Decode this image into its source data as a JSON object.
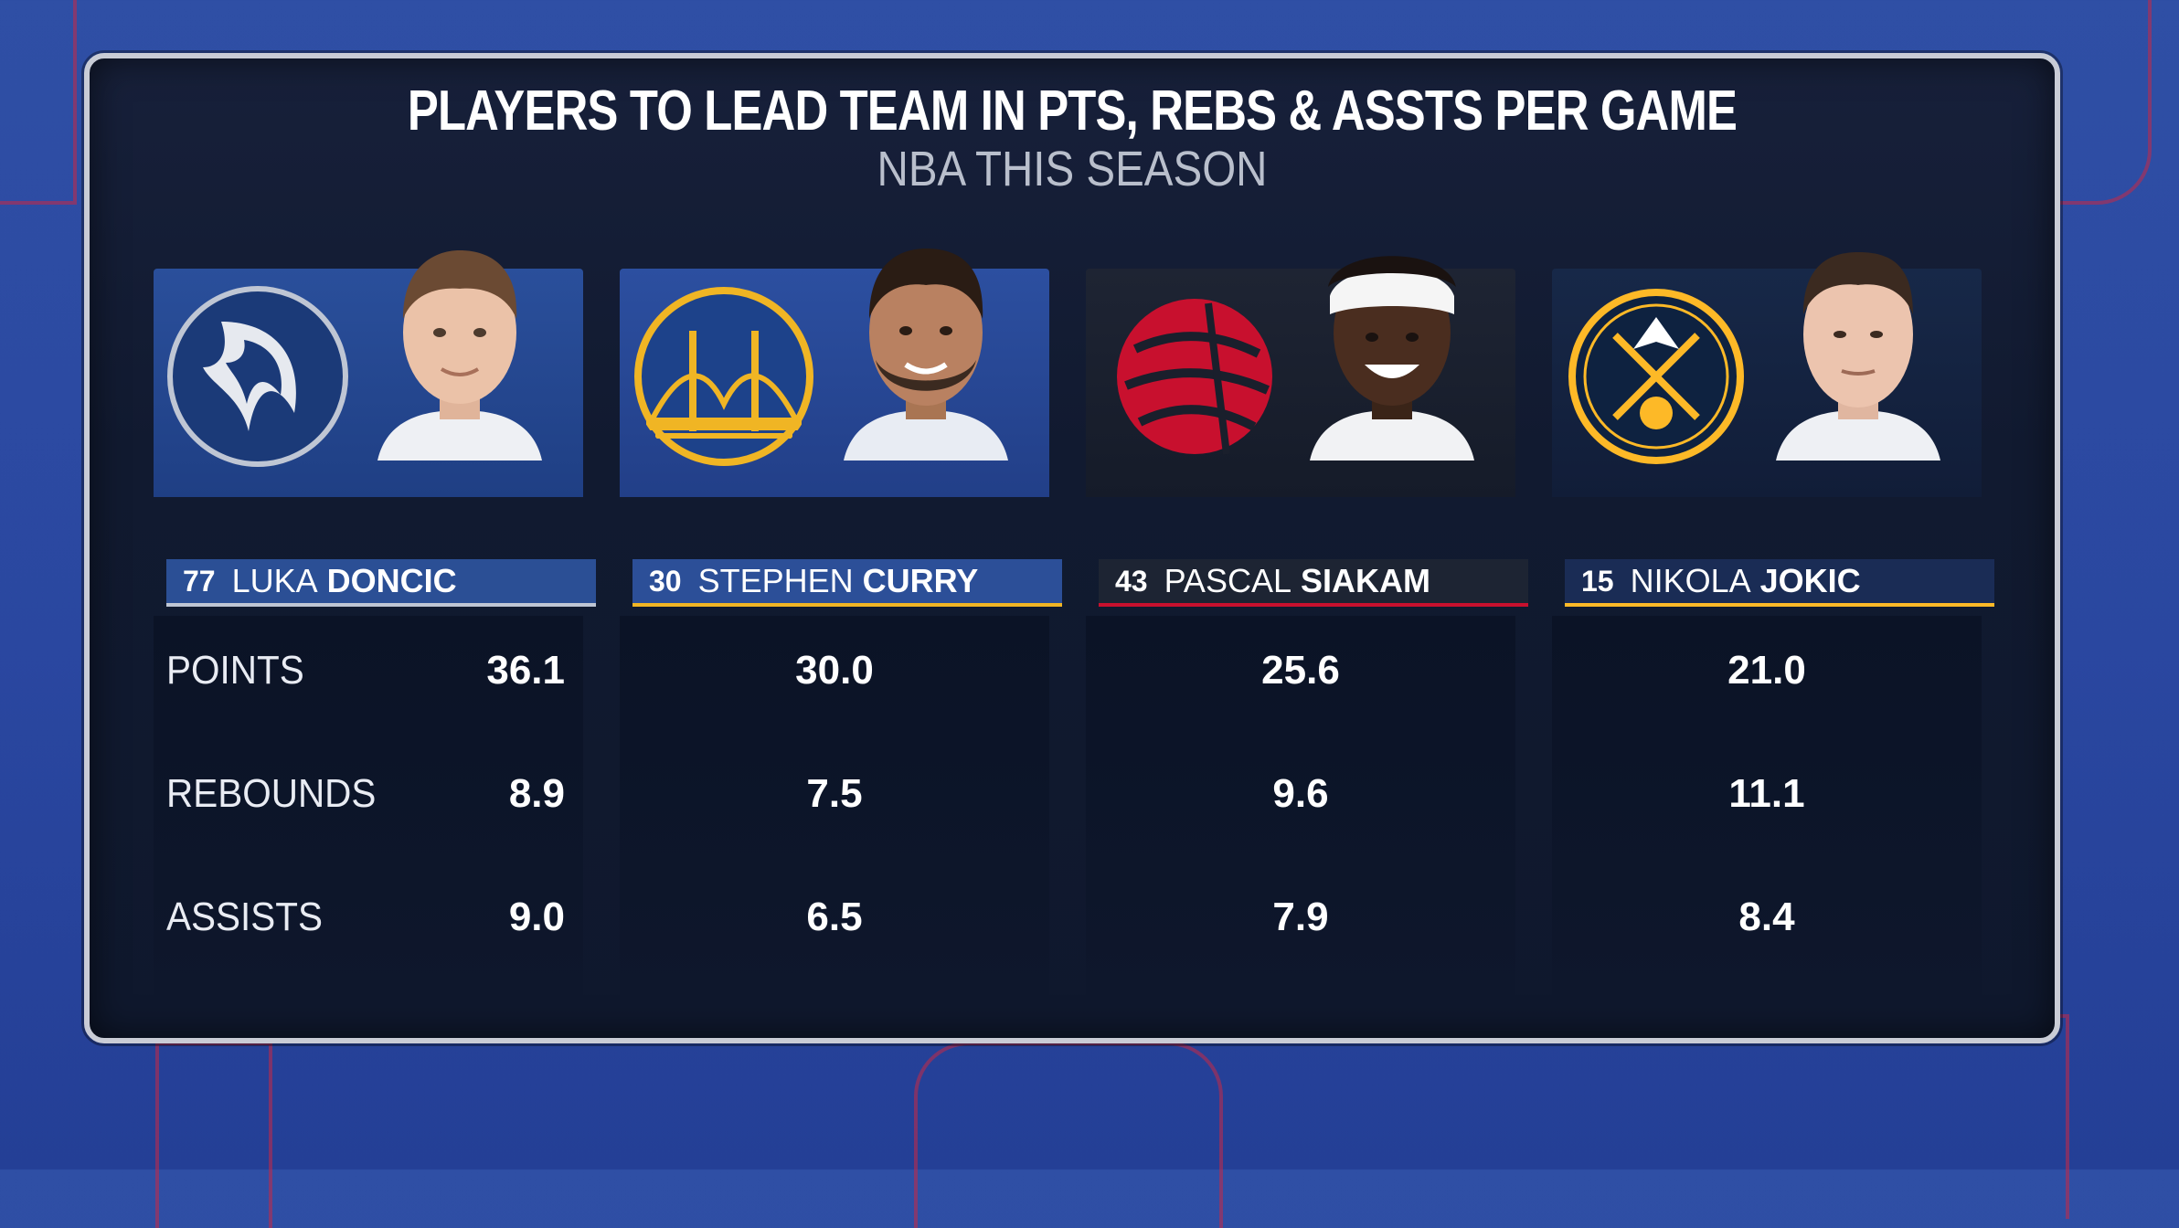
{
  "graphic": {
    "title": "PLAYERS TO LEAD TEAM IN PTS, REBS & ASSTS PER GAME",
    "subtitle": "NBA THIS SEASON"
  },
  "stat_labels": [
    "POINTS",
    "REBOUNDS",
    "ASSISTS"
  ],
  "players": [
    {
      "number": "77",
      "first": "LUKA",
      "last": "DONCIC",
      "team_logo": "mavericks-logo",
      "colors": {
        "primary": "#24498f",
        "bar": "#2b4f95",
        "accent": "#bfc6d4"
      },
      "points": "36.1",
      "rebounds": "8.9",
      "assists": "9.0"
    },
    {
      "number": "30",
      "first": "STEPHEN",
      "last": "CURRY",
      "team_logo": "warriors-logo",
      "colors": {
        "primary": "#27479a",
        "bar": "#2c4f98",
        "accent": "#f0b524"
      },
      "points": "30.0",
      "rebounds": "7.5",
      "assists": "6.5"
    },
    {
      "number": "43",
      "first": "PASCAL",
      "last": "SIAKAM",
      "team_logo": "raptors-logo",
      "colors": {
        "primary": "#1a1f2c",
        "bar": "#1d2433",
        "accent": "#c8102e"
      },
      "points": "25.6",
      "rebounds": "9.6",
      "assists": "7.9"
    },
    {
      "number": "15",
      "first": "NIKOLA",
      "last": "JOKIC",
      "team_logo": "nuggets-logo",
      "colors": {
        "primary": "#152447",
        "bar": "#1a2c55",
        "accent": "#fdb927"
      },
      "points": "21.0",
      "rebounds": "11.1",
      "assists": "8.4"
    }
  ]
}
